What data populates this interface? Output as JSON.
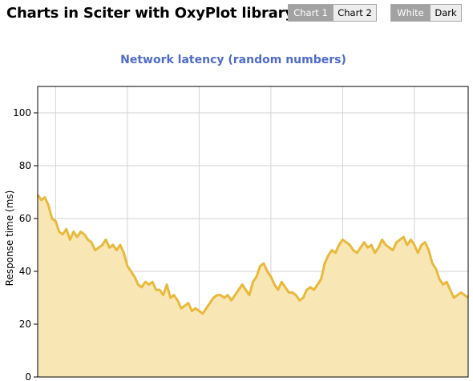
{
  "app": {
    "title": "Charts in Sciter with OxyPlot library"
  },
  "chart_tabs": [
    {
      "label": "Chart 1",
      "active": true
    },
    {
      "label": "Chart 2",
      "active": false
    }
  ],
  "theme_tabs": [
    {
      "label": "White",
      "active": true
    },
    {
      "label": "Dark",
      "active": false
    }
  ],
  "colors": {
    "title": "#4f6bc9",
    "line": "#e8b93c",
    "fill": "#f8e6b4",
    "grid": "#d3d3d3",
    "axis": "#000000",
    "active_tab": "#a2a2a2",
    "inactive_tab": "#ededed"
  },
  "chart_data": {
    "type": "area",
    "title": "Network latency (random numbers)",
    "xlabel": "",
    "ylabel": "Response time (ms)",
    "ylim": [
      0,
      110
    ],
    "yticks": [
      0,
      20,
      40,
      60,
      80,
      100
    ],
    "xlim": [
      0,
      120
    ],
    "grid": true,
    "series": [
      {
        "x": [
          0,
          1,
          2,
          3,
          4,
          5,
          6,
          7,
          8,
          9,
          10,
          11,
          12,
          13,
          14,
          15,
          16,
          17,
          18,
          19,
          20,
          21,
          22,
          23,
          24,
          25,
          26,
          27,
          28,
          29,
          30,
          31,
          32,
          33,
          34,
          35,
          36,
          37,
          38,
          39,
          40,
          41,
          42,
          43,
          44,
          45,
          46,
          47,
          48,
          49,
          50,
          51,
          52,
          53,
          54,
          55,
          56,
          57,
          58,
          59,
          60,
          61,
          62,
          63,
          64,
          65,
          66,
          67,
          68,
          69,
          70,
          71,
          72,
          73,
          74,
          75,
          76,
          77,
          78,
          79,
          80,
          81,
          82,
          83,
          84,
          85,
          86,
          87,
          88,
          89,
          90,
          91,
          92,
          93,
          94,
          95,
          96,
          97,
          98,
          99,
          100,
          101,
          102,
          103,
          104,
          105,
          106,
          107,
          108,
          109,
          110,
          111,
          112,
          113,
          114,
          115,
          116,
          117,
          118,
          119,
          120
        ],
        "values": [
          69,
          67,
          68,
          65,
          60,
          59,
          55,
          54,
          56,
          52,
          55,
          53,
          55,
          54,
          52,
          51,
          48,
          49,
          50,
          52,
          49,
          50,
          48,
          50,
          47,
          42,
          40,
          38,
          35,
          34,
          36,
          35,
          36,
          33,
          33,
          31,
          35,
          30,
          31,
          29,
          26,
          27,
          28,
          25,
          26,
          25,
          24,
          26,
          28,
          30,
          31,
          31,
          30,
          31,
          29,
          31,
          33,
          35,
          33,
          31,
          36,
          38,
          42,
          43,
          40,
          38,
          35,
          33,
          36,
          34,
          32,
          32,
          31,
          29,
          30,
          33,
          34,
          33,
          35,
          37,
          43,
          46,
          48,
          47,
          50,
          52,
          51,
          50,
          48,
          47,
          49,
          51,
          49,
          50,
          47,
          49,
          52,
          50,
          49,
          48,
          51,
          52,
          53,
          50,
          52,
          50,
          47,
          50,
          51,
          48,
          43,
          41,
          37,
          35,
          36,
          33,
          30,
          31,
          32,
          31,
          30
        ]
      }
    ]
  }
}
